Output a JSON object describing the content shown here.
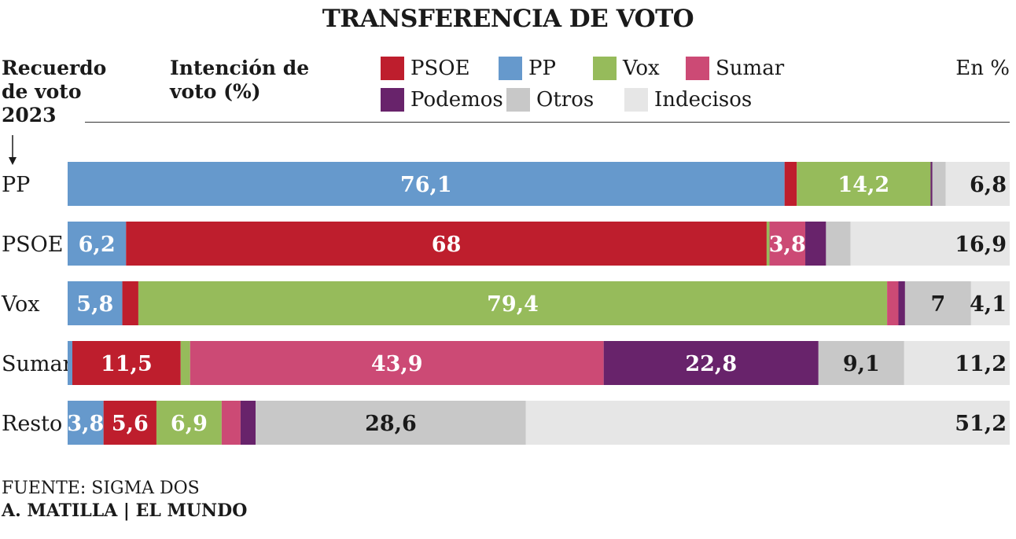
{
  "header": {
    "title": "TRANSFERENCIA DE VOTO",
    "recuerdo_label": "Recuerdo de voto 2023",
    "intencion_label": "Intención de voto (%)",
    "unit_label": "En %"
  },
  "legend": [
    {
      "label": "PSOE",
      "color": "#be1e2d"
    },
    {
      "label": "PP",
      "color": "#6699cc"
    },
    {
      "label": "Vox",
      "color": "#96bb5b"
    },
    {
      "label": "Sumar",
      "color": "#cc4a75"
    },
    {
      "label": "Podemos",
      "color": "#68236b"
    },
    {
      "label": "Otros",
      "color": "#c8c8c8"
    },
    {
      "label": "Indecisos",
      "color": "#e6e6e6"
    }
  ],
  "footer": {
    "source": "FUENTE: SIGMA DOS",
    "credit": "A. MATILLA | EL MUNDO"
  },
  "chart_data": {
    "type": "bar",
    "orientation": "horizontal-stacked",
    "categories": [
      "PP",
      "PSOE",
      "Vox",
      "Sumar",
      "Resto"
    ],
    "series": [
      {
        "name": "PP",
        "color": "#6699cc",
        "values": [
          76.1,
          6.2,
          5.8,
          0.5,
          3.8
        ],
        "labels": [
          "76,1",
          "6,2",
          "5,8",
          "",
          "3,8"
        ]
      },
      {
        "name": "PSOE",
        "color": "#be1e2d",
        "values": [
          1.3,
          68,
          1.7,
          11.5,
          5.6
        ],
        "labels": [
          "",
          "68",
          "",
          "11,5",
          "5,6"
        ]
      },
      {
        "name": "Vox",
        "color": "#96bb5b",
        "values": [
          14.2,
          0.3,
          79.4,
          1.0,
          6.9
        ],
        "labels": [
          "14,2",
          "",
          "79,4",
          "",
          "6,9"
        ]
      },
      {
        "name": "Sumar",
        "color": "#cc4a75",
        "values": [
          0.0,
          3.8,
          1.2,
          43.9,
          2.0
        ],
        "labels": [
          "",
          "3,8",
          "",
          "43,9",
          ""
        ]
      },
      {
        "name": "Podemos",
        "color": "#68236b",
        "values": [
          0.2,
          2.2,
          0.7,
          22.8,
          1.6
        ],
        "labels": [
          "",
          "",
          "",
          "22,8",
          ""
        ]
      },
      {
        "name": "Otros",
        "color": "#c8c8c8",
        "values": [
          1.4,
          2.6,
          7,
          9.1,
          28.6
        ],
        "labels": [
          "",
          "",
          "7",
          "9,1",
          "28,6"
        ]
      },
      {
        "name": "Indecisos",
        "color": "#e6e6e6",
        "values": [
          6.8,
          16.9,
          4.1,
          11.2,
          51.2
        ],
        "labels": [
          "6,8",
          "16,9",
          "4,1",
          "11,2",
          "51,2"
        ]
      }
    ],
    "xlim": [
      0,
      100
    ],
    "unit": "%",
    "indecisos_label_align": "right"
  }
}
